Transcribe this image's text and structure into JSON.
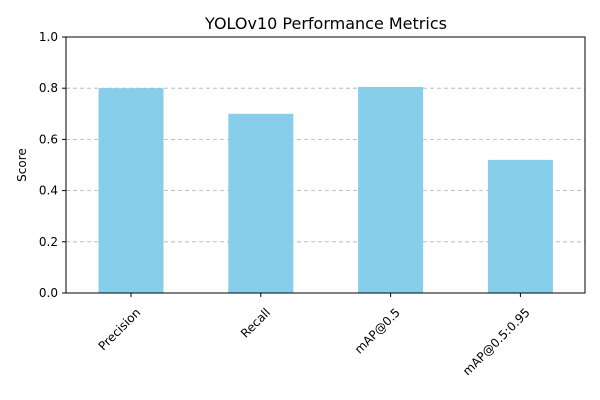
{
  "chart_data": {
    "type": "bar",
    "title": "YOLOv10 Performance Metrics",
    "xlabel": "",
    "ylabel": "Score",
    "categories": [
      "Precision",
      "Recall",
      "mAP@0.5",
      "mAP@0.5:0.95"
    ],
    "values": [
      0.8,
      0.7,
      0.805,
      0.52
    ],
    "ylim": [
      0,
      1.0
    ],
    "yticks": [
      "0.0",
      "0.2",
      "0.4",
      "0.6",
      "0.8",
      "1.0"
    ],
    "ytick_values": [
      0,
      0.2,
      0.4,
      0.6,
      0.8,
      1.0
    ],
    "grid": "y-dashed",
    "bar_color": "#87ceeb",
    "xtick_rotation": 45
  }
}
